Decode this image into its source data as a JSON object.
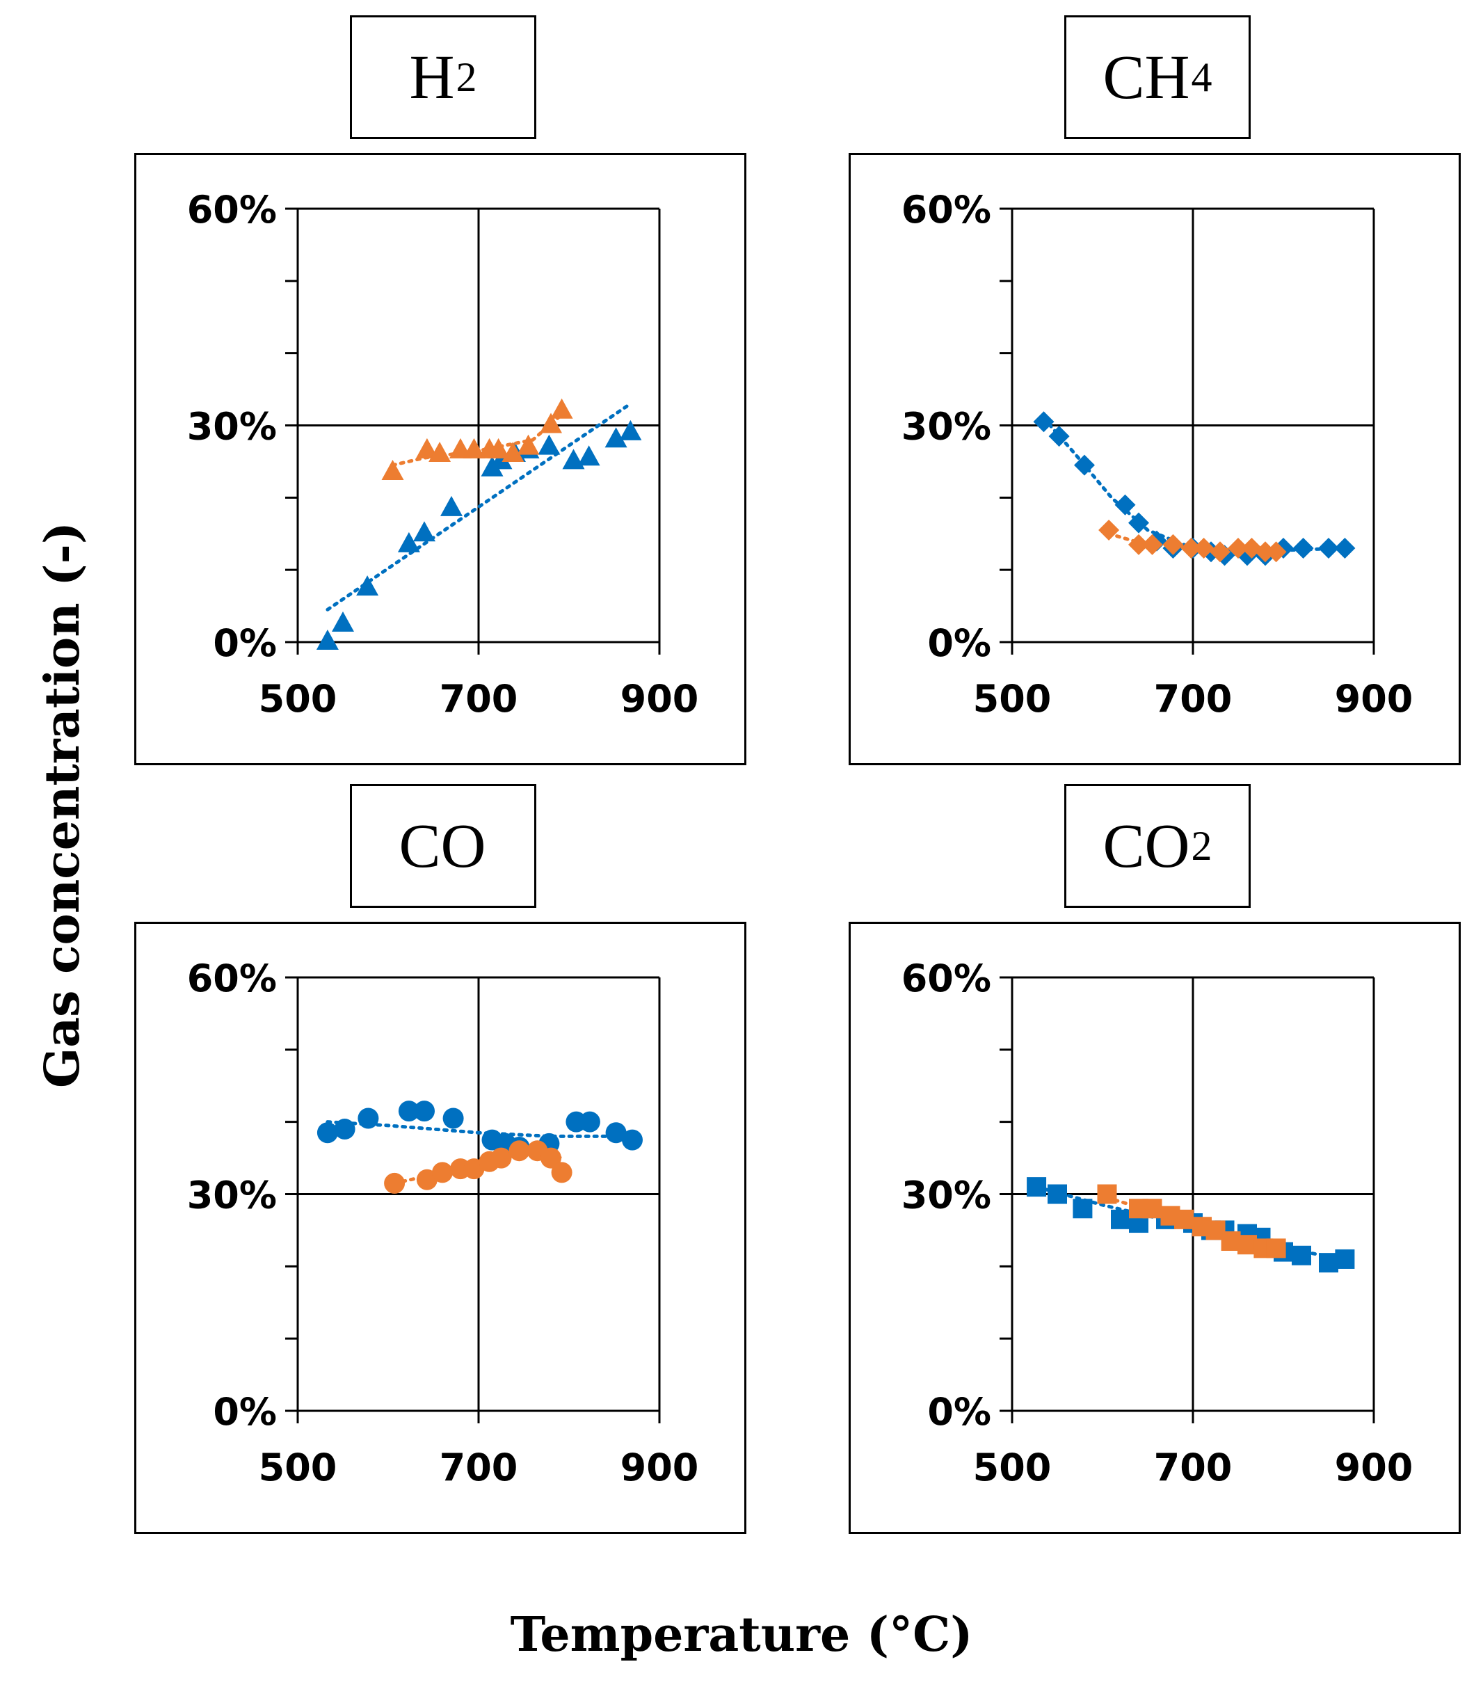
{
  "figure": {
    "y_axis_label": "Gas concentration (-)",
    "x_axis_label": "Temperature (°C)"
  },
  "colors": {
    "blue": "#0070C0",
    "orange": "#ED7D31",
    "blue_light": "#5B9BD5"
  },
  "chart_data": [
    {
      "type": "scatter",
      "title": "H2",
      "title_main": "H",
      "title_sub": "2",
      "marker": "triangle",
      "xlim": [
        500,
        900
      ],
      "ylim": [
        0,
        60
      ],
      "x_ticks": [
        "500",
        "700",
        "900"
      ],
      "y_ticks": [
        "0%",
        "30%",
        "60%"
      ],
      "series": [
        {
          "name": "series-blue",
          "color": "#0070C0",
          "points": [
            [
              533,
              0
            ],
            [
              550,
              2.5
            ],
            [
              577,
              7.5
            ],
            [
              623,
              13.5
            ],
            [
              640,
              15
            ],
            [
              670,
              18.5
            ],
            [
              715,
              24
            ],
            [
              725,
              25
            ],
            [
              740,
              26
            ],
            [
              755,
              26.5
            ],
            [
              778,
              27
            ],
            [
              805,
              25
            ],
            [
              822,
              25.5
            ],
            [
              852,
              28
            ],
            [
              868,
              29
            ]
          ],
          "trend": [
            [
              533,
              4.5
            ],
            [
              868,
              33
            ]
          ]
        },
        {
          "name": "series-orange",
          "color": "#ED7D31",
          "points": [
            [
              605,
              23.5
            ],
            [
              643,
              26.5
            ],
            [
              657,
              26
            ],
            [
              680,
              26.5
            ],
            [
              695,
              26.5
            ],
            [
              712,
              26.5
            ],
            [
              722,
              26.5
            ],
            [
              738,
              26
            ],
            [
              755,
              27
            ],
            [
              780,
              30
            ],
            [
              792,
              32
            ]
          ],
          "trend": [
            [
              605,
              24.5
            ],
            [
              640,
              25.5
            ],
            [
              700,
              26.5
            ],
            [
              760,
              28
            ],
            [
              792,
              31.5
            ]
          ]
        }
      ]
    },
    {
      "type": "scatter",
      "title": "CH4",
      "title_main": "CH",
      "title_sub": "4",
      "marker": "diamond",
      "xlim": [
        500,
        900
      ],
      "ylim": [
        0,
        60
      ],
      "x_ticks": [
        "500",
        "700",
        "900"
      ],
      "y_ticks": [
        "0%",
        "30%",
        "60%"
      ],
      "series": [
        {
          "name": "series-blue",
          "color": "#0070C0",
          "points": [
            [
              535,
              30.5
            ],
            [
              552,
              28.5
            ],
            [
              580,
              24.5
            ],
            [
              625,
              19
            ],
            [
              640,
              16.5
            ],
            [
              660,
              14
            ],
            [
              678,
              13
            ],
            [
              700,
              13
            ],
            [
              720,
              12.5
            ],
            [
              735,
              12
            ],
            [
              760,
              12
            ],
            [
              780,
              12
            ],
            [
              800,
              13
            ],
            [
              822,
              13
            ],
            [
              850,
              13
            ],
            [
              868,
              13
            ]
          ],
          "trend": [
            [
              535,
              31
            ],
            [
              570,
              26
            ],
            [
              610,
              20
            ],
            [
              650,
              15.5
            ],
            [
              700,
              13
            ],
            [
              760,
              12.5
            ],
            [
              820,
              12.8
            ],
            [
              868,
              13
            ]
          ]
        },
        {
          "name": "series-orange",
          "color": "#ED7D31",
          "points": [
            [
              607,
              15.5
            ],
            [
              640,
              13.5
            ],
            [
              655,
              13.5
            ],
            [
              678,
              13.5
            ],
            [
              698,
              13
            ],
            [
              712,
              13
            ],
            [
              730,
              12.5
            ],
            [
              750,
              13
            ],
            [
              765,
              13
            ],
            [
              780,
              12.5
            ],
            [
              792,
              12.5
            ]
          ],
          "trend": [
            [
              607,
              15
            ],
            [
              640,
              13.8
            ],
            [
              700,
              13
            ],
            [
              792,
              12.5
            ]
          ]
        }
      ]
    },
    {
      "type": "scatter",
      "title": "CO",
      "title_main": "CO",
      "title_sub": "",
      "marker": "circle",
      "xlim": [
        500,
        900
      ],
      "ylim": [
        0,
        60
      ],
      "x_ticks": [
        "500",
        "700",
        "900"
      ],
      "y_ticks": [
        "0%",
        "30%",
        "60%"
      ],
      "series": [
        {
          "name": "series-blue",
          "color": "#0070C0",
          "points": [
            [
              533,
              38.5
            ],
            [
              552,
              39
            ],
            [
              578,
              40.5
            ],
            [
              623,
              41.5
            ],
            [
              640,
              41.5
            ],
            [
              672,
              40.5
            ],
            [
              715,
              37.5
            ],
            [
              730,
              37
            ],
            [
              745,
              36.5
            ],
            [
              778,
              37
            ],
            [
              808,
              40
            ],
            [
              823,
              40
            ],
            [
              852,
              38.5
            ],
            [
              870,
              37.5
            ]
          ],
          "trend": [
            [
              533,
              40
            ],
            [
              600,
              39.5
            ],
            [
              700,
              38.5
            ],
            [
              780,
              38
            ],
            [
              870,
              38
            ]
          ]
        },
        {
          "name": "series-orange",
          "color": "#ED7D31",
          "points": [
            [
              607,
              31.5
            ],
            [
              643,
              32
            ],
            [
              660,
              33
            ],
            [
              680,
              33.5
            ],
            [
              695,
              33.5
            ],
            [
              712,
              34.5
            ],
            [
              725,
              35
            ],
            [
              745,
              36
            ],
            [
              765,
              36
            ],
            [
              780,
              35
            ],
            [
              792,
              33
            ]
          ],
          "trend": [
            [
              607,
              31.5
            ],
            [
              660,
              33
            ],
            [
              720,
              35
            ],
            [
              770,
              35.8
            ],
            [
              792,
              35
            ]
          ]
        }
      ]
    },
    {
      "type": "scatter",
      "title": "CO2",
      "title_main": "CO",
      "title_sub": "2",
      "marker": "square",
      "xlim": [
        500,
        900
      ],
      "ylim": [
        0,
        60
      ],
      "x_ticks": [
        "500",
        "700",
        "900"
      ],
      "y_ticks": [
        "0%",
        "30%",
        "60%"
      ],
      "series": [
        {
          "name": "series-blue",
          "color": "#0070C0",
          "points": [
            [
              527,
              31
            ],
            [
              550,
              30
            ],
            [
              578,
              28
            ],
            [
              620,
              26.5
            ],
            [
              640,
              26
            ],
            [
              670,
              26.5
            ],
            [
              700,
              26
            ],
            [
              720,
              25
            ],
            [
              735,
              25
            ],
            [
              760,
              24.5
            ],
            [
              775,
              24
            ],
            [
              800,
              22
            ],
            [
              820,
              21.5
            ],
            [
              850,
              20.5
            ],
            [
              868,
              21
            ]
          ],
          "trend": [
            [
              527,
              31
            ],
            [
              600,
              28.5
            ],
            [
              700,
              25.5
            ],
            [
              800,
              22.5
            ],
            [
              868,
              21
            ]
          ]
        },
        {
          "name": "series-orange",
          "color": "#ED7D31",
          "points": [
            [
              605,
              30
            ],
            [
              640,
              28
            ],
            [
              655,
              28
            ],
            [
              675,
              27
            ],
            [
              690,
              26.5
            ],
            [
              710,
              25.5
            ],
            [
              725,
              25
            ],
            [
              742,
              23.5
            ],
            [
              760,
              23
            ],
            [
              778,
              22.5
            ],
            [
              792,
              22.5
            ]
          ],
          "trend": [
            [
              605,
              29.5
            ],
            [
              700,
              26
            ],
            [
              792,
              22.5
            ]
          ]
        }
      ]
    }
  ]
}
